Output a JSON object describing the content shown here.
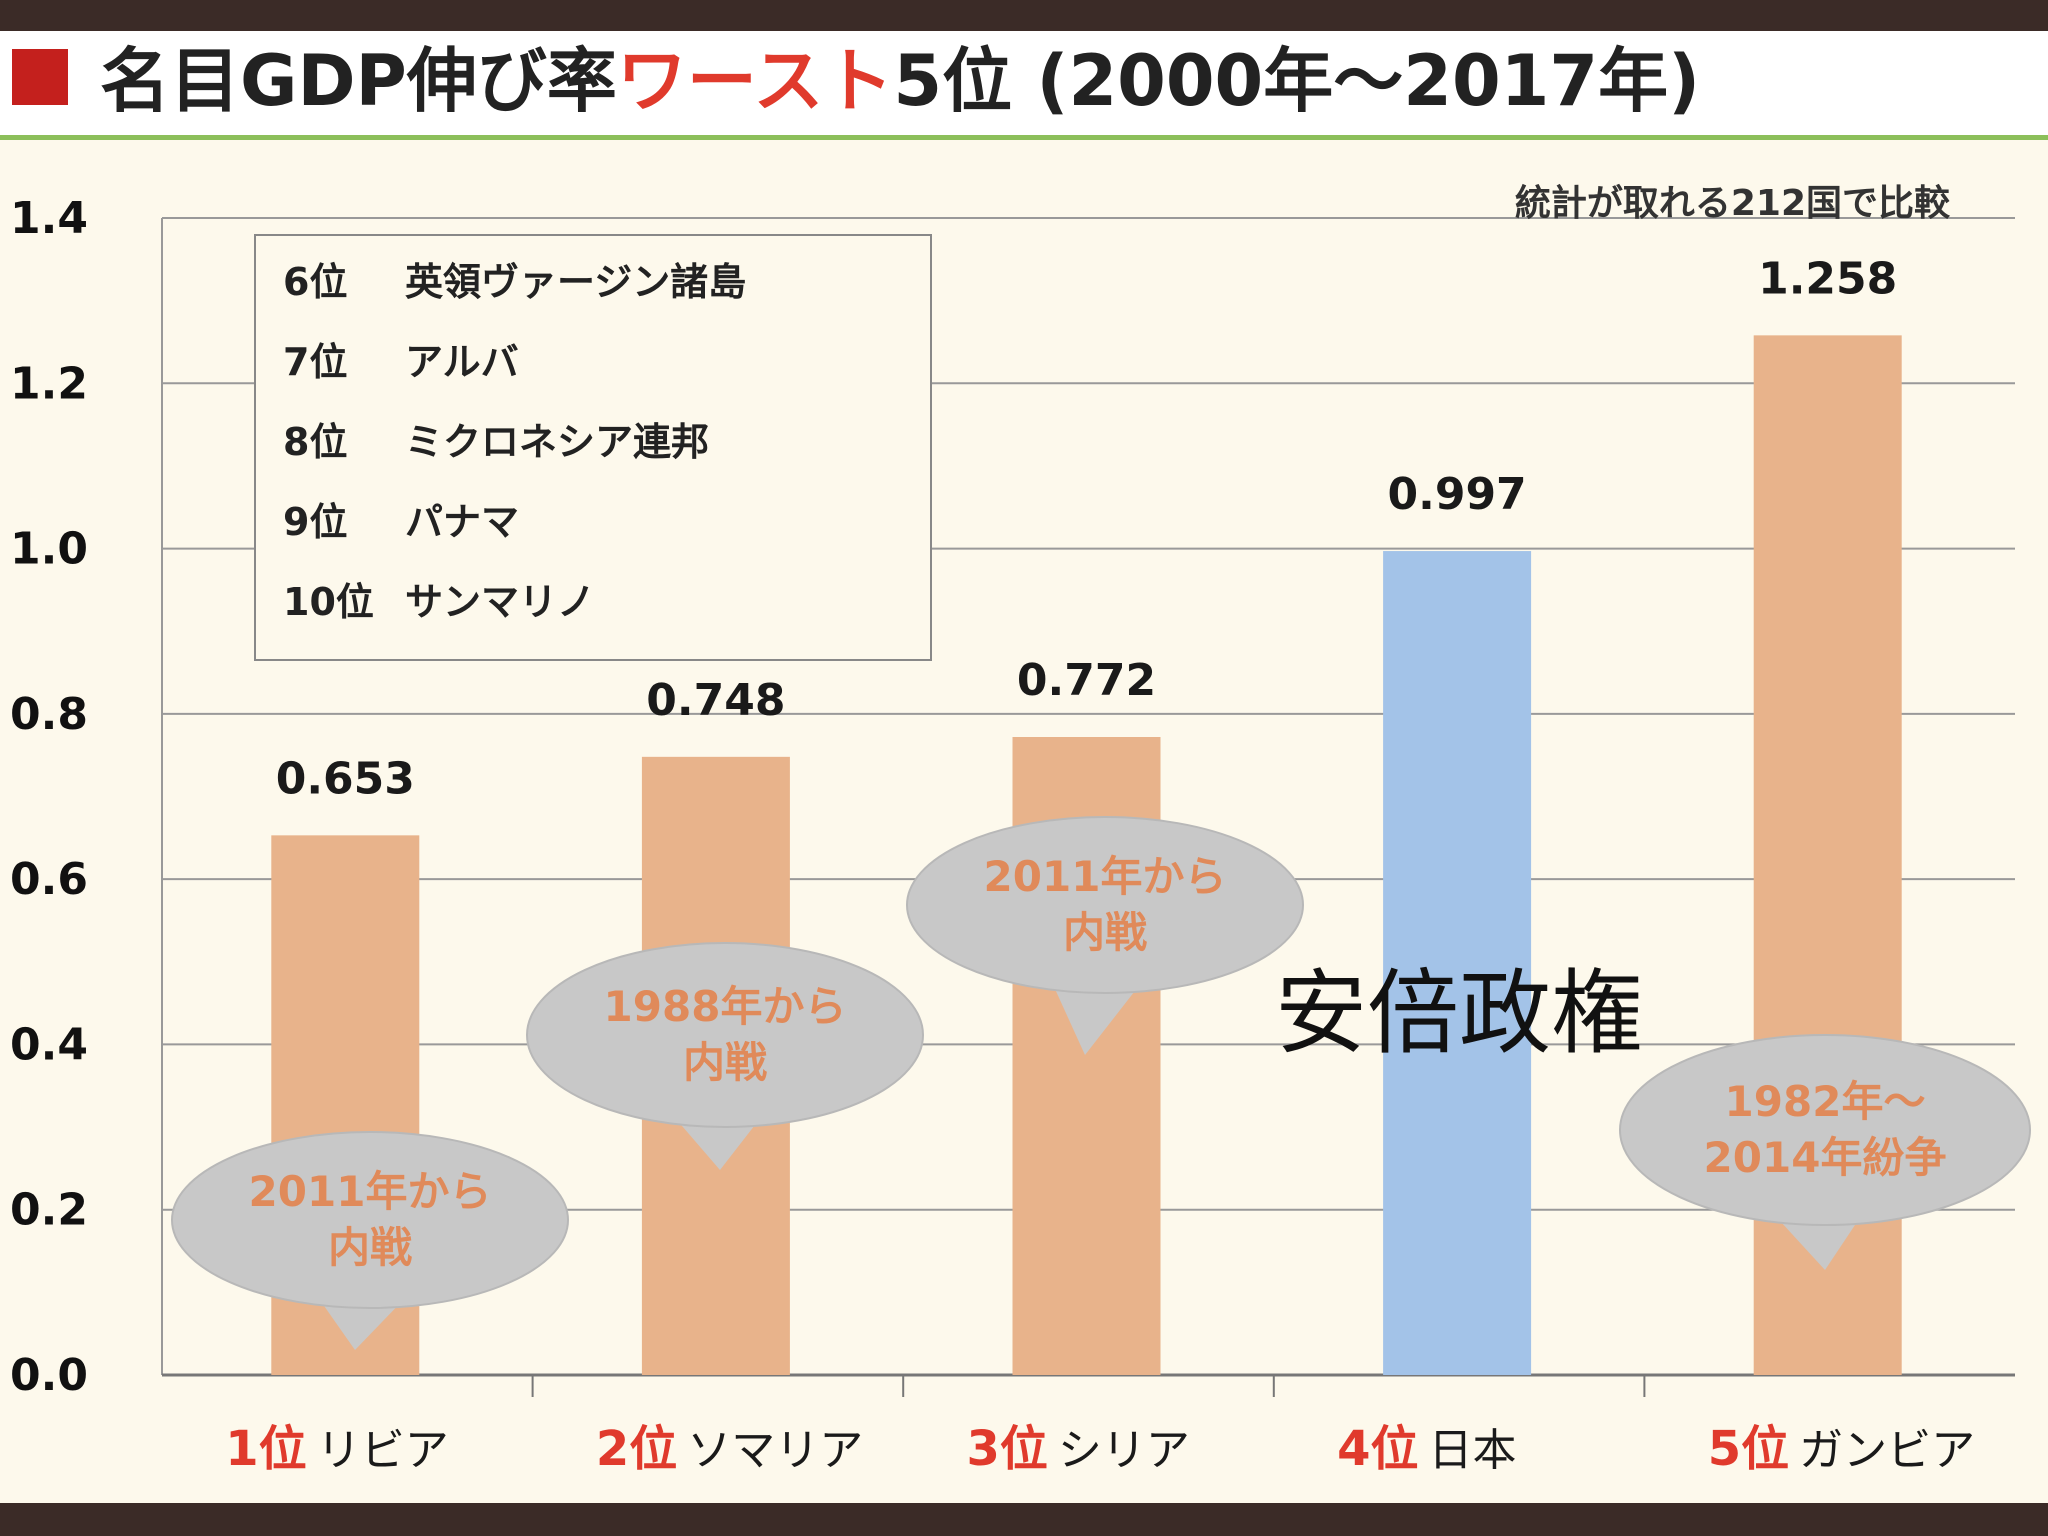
{
  "title": {
    "prefix": "名目GDP伸び率",
    "highlight": "ワースト",
    "suffix": "5位 (2000年～2017年)"
  },
  "note": "統計が取れる212国で比較",
  "overlay_text": "安倍政権",
  "legend": [
    {
      "rank": "6位",
      "name": "英領ヴァージン諸島"
    },
    {
      "rank": "7位",
      "name": "アルバ"
    },
    {
      "rank": "8位",
      "name": "ミクロネシア連邦"
    },
    {
      "rank": "9位",
      "name": "パナマ"
    },
    {
      "rank": "10位",
      "name": "サンマリノ"
    }
  ],
  "colors": {
    "bar": "#e8b38b",
    "highlight_bar": "#a3c3e8",
    "grid": "#999999",
    "bubble": "#c8c8c8",
    "bubble_text": "#e08a5a",
    "accent_red": "#e03a2c"
  },
  "chart_data": {
    "type": "bar",
    "ylim": [
      0,
      1.4
    ],
    "yticks": [
      "0.0",
      "0.2",
      "0.4",
      "0.6",
      "0.8",
      "1.0",
      "1.2",
      "1.4"
    ],
    "categories": [
      {
        "rank": "1位",
        "name": "リビア"
      },
      {
        "rank": "2位",
        "name": "ソマリア"
      },
      {
        "rank": "3位",
        "name": "シリア"
      },
      {
        "rank": "4位",
        "name": "日本"
      },
      {
        "rank": "5位",
        "name": "ガンビア"
      }
    ],
    "values": [
      0.653,
      0.748,
      0.772,
      0.997,
      1.258
    ],
    "value_labels": [
      "0.653",
      "0.748",
      "0.772",
      "0.997",
      "1.258"
    ],
    "highlight_index": 3,
    "annotations": [
      {
        "lines": [
          "2011年から",
          "内戦"
        ]
      },
      {
        "lines": [
          "1988年から",
          "内戦"
        ]
      },
      {
        "lines": [
          "2011年から",
          "内戦"
        ]
      },
      null,
      {
        "lines": [
          "1982年～",
          "2014年紛争"
        ]
      }
    ]
  }
}
